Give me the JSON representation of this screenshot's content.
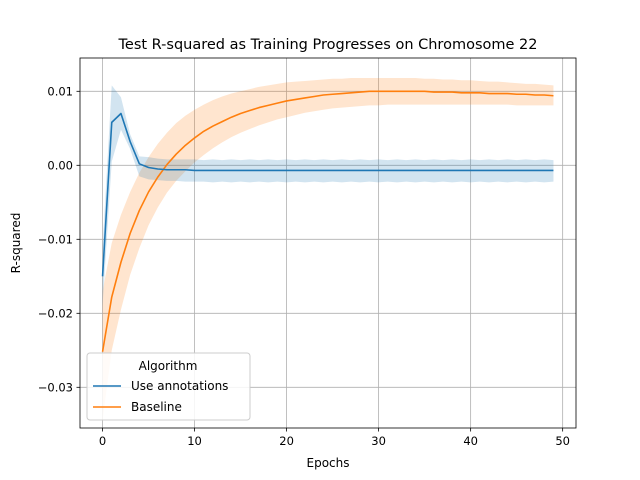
{
  "chart_data": {
    "type": "line",
    "title": "Test R-squared as Training Progresses on Chromosome 22",
    "xlabel": "Epochs",
    "ylabel": "R-squared",
    "xlim": [
      -2.45,
      51.45
    ],
    "ylim": [
      -0.0355,
      0.0145
    ],
    "xticks": [
      0,
      10,
      20,
      30,
      40,
      50
    ],
    "xtick_labels": [
      "0",
      "10",
      "20",
      "30",
      "40",
      "50"
    ],
    "yticks": [
      -0.03,
      -0.02,
      -0.01,
      0.0,
      0.01
    ],
    "ytick_labels": [
      "−0.03",
      "−0.02",
      "−0.01",
      "0.00",
      "0.01"
    ],
    "grid": true,
    "legend": {
      "title": "Algorithm",
      "placement": "lower-left"
    },
    "series": [
      {
        "name": "Use annotations",
        "color": "#1f77b4",
        "x": [
          0,
          1,
          2,
          3,
          4,
          5,
          6,
          7,
          8,
          9,
          10,
          11,
          12,
          13,
          14,
          15,
          16,
          17,
          18,
          19,
          20,
          21,
          22,
          23,
          24,
          25,
          26,
          27,
          28,
          29,
          30,
          31,
          32,
          33,
          34,
          35,
          36,
          37,
          38,
          39,
          40,
          41,
          42,
          43,
          44,
          45,
          46,
          47,
          48,
          49
        ],
        "mean": [
          -0.015,
          0.0058,
          0.007,
          0.0032,
          0.0002,
          -0.0003,
          -0.0005,
          -0.0006,
          -0.0006,
          -0.0006,
          -0.0007,
          -0.0007,
          -0.0007,
          -0.0007,
          -0.0007,
          -0.0007,
          -0.0007,
          -0.0007,
          -0.0007,
          -0.0007,
          -0.0007,
          -0.0007,
          -0.0007,
          -0.0007,
          -0.0007,
          -0.0007,
          -0.0007,
          -0.0007,
          -0.0007,
          -0.0007,
          -0.0007,
          -0.0007,
          -0.0007,
          -0.0007,
          -0.0007,
          -0.0007,
          -0.0007,
          -0.0007,
          -0.0007,
          -0.0007,
          -0.0007,
          -0.0007,
          -0.0007,
          -0.0007,
          -0.0007,
          -0.0007,
          -0.0007,
          -0.0007,
          -0.0007,
          -0.0007
        ],
        "lower": [
          -0.019,
          0.0005,
          0.0048,
          0.0022,
          -0.0015,
          -0.0019,
          -0.002,
          -0.0021,
          -0.0021,
          -0.0022,
          -0.0022,
          -0.0022,
          -0.0023,
          -0.0022,
          -0.0023,
          -0.0022,
          -0.0023,
          -0.0022,
          -0.0023,
          -0.0022,
          -0.0023,
          -0.0022,
          -0.0023,
          -0.0022,
          -0.0023,
          -0.0022,
          -0.0023,
          -0.0022,
          -0.0023,
          -0.0022,
          -0.0023,
          -0.0022,
          -0.0023,
          -0.0022,
          -0.0023,
          -0.0022,
          -0.0023,
          -0.0022,
          -0.0023,
          -0.0022,
          -0.0023,
          -0.0022,
          -0.0023,
          -0.0022,
          -0.0023,
          -0.0022,
          -0.0023,
          -0.0022,
          -0.0023,
          -0.0022
        ],
        "upper": [
          -0.011,
          0.0108,
          0.0092,
          0.0042,
          0.0012,
          0.0011,
          0.0009,
          0.0008,
          0.0008,
          0.0008,
          0.0008,
          0.0007,
          0.0008,
          0.0007,
          0.0008,
          0.0007,
          0.0008,
          0.0007,
          0.0008,
          0.0007,
          0.0008,
          0.0007,
          0.0008,
          0.0007,
          0.0008,
          0.0007,
          0.0008,
          0.0007,
          0.0008,
          0.0007,
          0.0008,
          0.0007,
          0.0008,
          0.0007,
          0.0008,
          0.0007,
          0.0008,
          0.0007,
          0.0008,
          0.0007,
          0.0008,
          0.0007,
          0.0008,
          0.0007,
          0.0008,
          0.0007,
          0.0008,
          0.0007,
          0.0008,
          0.0007
        ]
      },
      {
        "name": "Baseline",
        "color": "#ff7f0e",
        "x": [
          0,
          1,
          2,
          3,
          4,
          5,
          6,
          7,
          8,
          9,
          10,
          11,
          12,
          13,
          14,
          15,
          16,
          17,
          18,
          19,
          20,
          21,
          22,
          23,
          24,
          25,
          26,
          27,
          28,
          29,
          30,
          31,
          32,
          33,
          34,
          35,
          36,
          37,
          38,
          39,
          40,
          41,
          42,
          43,
          44,
          45,
          46,
          47,
          48,
          49
        ],
        "mean": [
          -0.0252,
          -0.0178,
          -0.0131,
          -0.0092,
          -0.0061,
          -0.0036,
          -0.0016,
          0.0001,
          0.0015,
          0.0027,
          0.0037,
          0.0046,
          0.0053,
          0.0059,
          0.0065,
          0.007,
          0.0074,
          0.0078,
          0.0081,
          0.0084,
          0.0087,
          0.0089,
          0.0091,
          0.0093,
          0.0095,
          0.0096,
          0.0097,
          0.0098,
          0.0099,
          0.01,
          0.01,
          0.01,
          0.01,
          0.01,
          0.01,
          0.01,
          0.0099,
          0.0099,
          0.0099,
          0.0098,
          0.0098,
          0.0098,
          0.0097,
          0.0097,
          0.0097,
          0.0096,
          0.0096,
          0.0095,
          0.0095,
          0.0094
        ],
        "lower": [
          -0.0345,
          -0.025,
          -0.0195,
          -0.0148,
          -0.0112,
          -0.0081,
          -0.0057,
          -0.0037,
          -0.0021,
          -0.0008,
          0.0004,
          0.0014,
          0.0023,
          0.0031,
          0.0038,
          0.0044,
          0.0049,
          0.0054,
          0.0058,
          0.0062,
          0.0065,
          0.0068,
          0.0071,
          0.0073,
          0.0075,
          0.0077,
          0.0078,
          0.0079,
          0.008,
          0.0081,
          0.0081,
          0.0082,
          0.0082,
          0.0082,
          0.0082,
          0.0082,
          0.0082,
          0.0082,
          0.0082,
          0.0082,
          0.0082,
          0.0082,
          0.0082,
          0.0082,
          0.0082,
          0.0081,
          0.0081,
          0.0081,
          0.0081,
          0.0081
        ],
        "upper": [
          -0.017,
          -0.0105,
          -0.0067,
          -0.0036,
          -0.001,
          0.0011,
          0.0029,
          0.0044,
          0.0057,
          0.0067,
          0.0075,
          0.0082,
          0.0088,
          0.0093,
          0.0097,
          0.01,
          0.0103,
          0.0106,
          0.0108,
          0.011,
          0.0112,
          0.0113,
          0.0114,
          0.0115,
          0.0116,
          0.0117,
          0.0117,
          0.0118,
          0.0118,
          0.0118,
          0.0118,
          0.0118,
          0.0118,
          0.0118,
          0.0118,
          0.0117,
          0.0117,
          0.0116,
          0.0116,
          0.0115,
          0.0115,
          0.0114,
          0.0113,
          0.0113,
          0.0112,
          0.0111,
          0.011,
          0.011,
          0.0109,
          0.0108
        ]
      }
    ]
  }
}
